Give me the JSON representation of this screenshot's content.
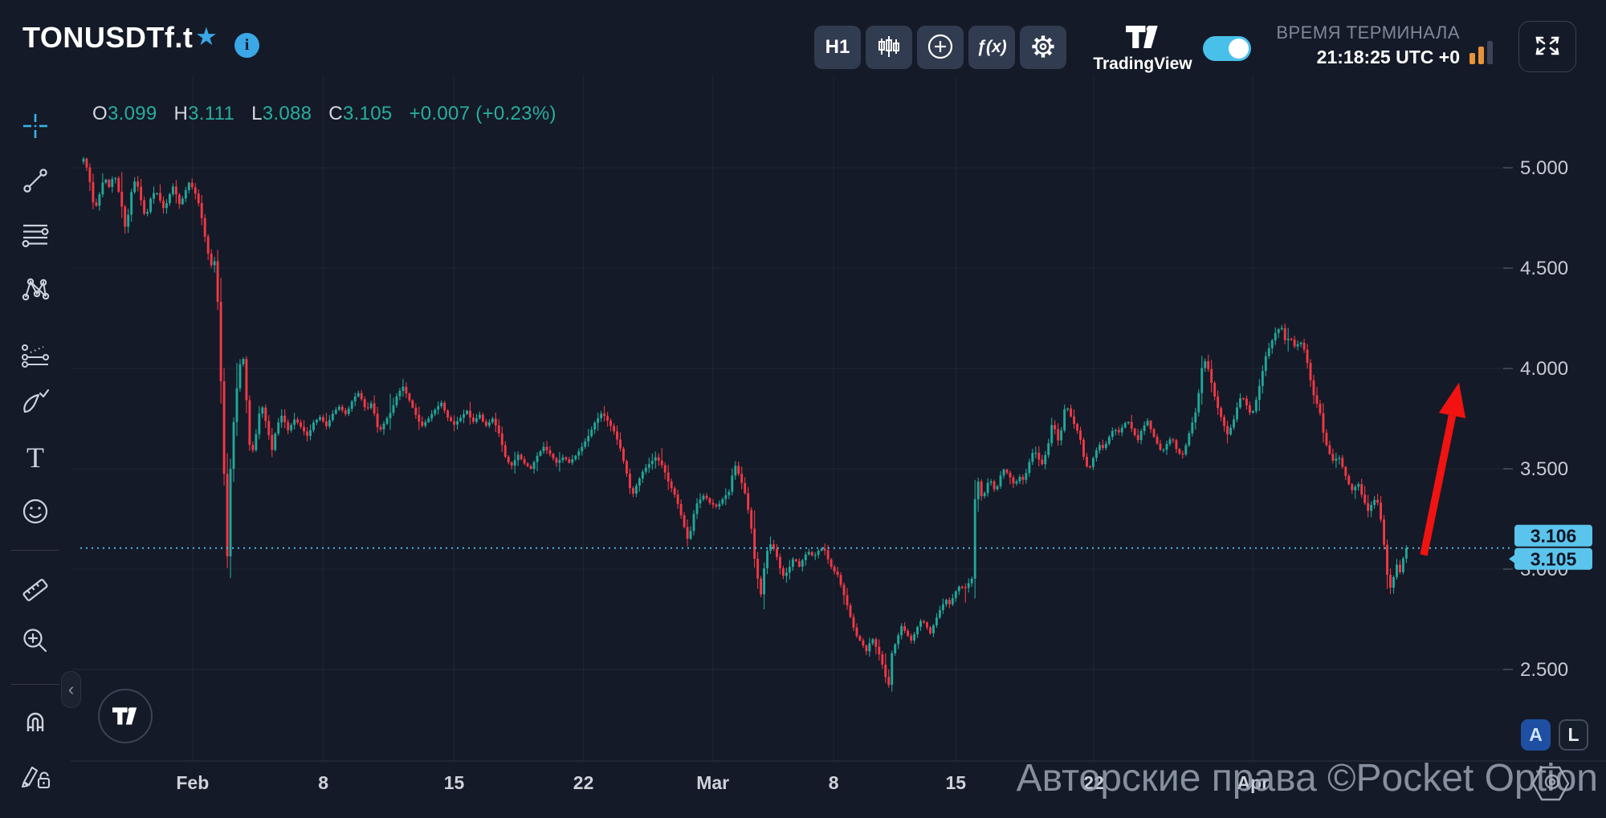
{
  "header": {
    "symbol": "TONUSDTf.t",
    "toolbar": {
      "timeframe": "H1",
      "indicators_label": "ƒ(x)"
    },
    "brand": "TradingView",
    "time_label": "ВРЕМЯ ТЕРМИНАЛА",
    "time_value": "21:18:25 UTC +0"
  },
  "sidebar": {
    "tools": [
      "crosshair",
      "trend-line",
      "fib-lines",
      "xabcd-pattern",
      "forecast",
      "brush",
      "text",
      "emoji",
      "ruler",
      "zoom-in",
      "magnet",
      "edit-lock"
    ]
  },
  "legend": {
    "o_label": "O",
    "o": "3.099",
    "h_label": "H",
    "h": "3.111",
    "l_label": "L",
    "l": "3.088",
    "c_label": "C",
    "c": "3.105",
    "change": "+0.007 (+0.23%)"
  },
  "chart_data": {
    "type": "candlestick",
    "symbol": "TONUSDTf.t",
    "timeframe": "H1",
    "ylim": [
      2.116,
      5.38
    ],
    "grid": true,
    "colors": {
      "up": "#21a79a",
      "down": "#f23846",
      "price_line": "#4fb5e2",
      "label_bg": "#5bc4ec",
      "label_text": "#0e1523",
      "arrow": "#f01311"
    },
    "y_ticks": [
      {
        "label": "5.000",
        "value": 5.0
      },
      {
        "label": "4.500",
        "value": 4.5
      },
      {
        "label": "4.000",
        "value": 4.0
      },
      {
        "label": "3.500",
        "value": 3.5
      },
      {
        "label": "3.000",
        "value": 3.0
      },
      {
        "label": "2.500",
        "value": 2.5
      }
    ],
    "x_ticks": [
      {
        "label": "Feb",
        "f": 0.079,
        "major": true
      },
      {
        "label": "8",
        "f": 0.171,
        "major": false
      },
      {
        "label": "15",
        "f": 0.263,
        "major": false
      },
      {
        "label": "22",
        "f": 0.354,
        "major": false
      },
      {
        "label": "Mar",
        "f": 0.445,
        "major": true
      },
      {
        "label": "8",
        "f": 0.53,
        "major": false
      },
      {
        "label": "15",
        "f": 0.616,
        "major": false
      },
      {
        "label": "22",
        "f": 0.713,
        "major": false
      },
      {
        "label": "Apr",
        "f": 0.825,
        "major": true
      }
    ],
    "current_price": 3.105,
    "price_scale_labels": [
      "3.106",
      "3.105"
    ],
    "candle_count": 415,
    "annotations": [
      {
        "type": "arrow",
        "from_f": 0.9452,
        "from_price": 3.07,
        "to_f": 0.97,
        "to_price": 3.93
      }
    ],
    "anchors": [
      [
        0.0,
        5.03
      ],
      [
        0.003,
        5.05
      ],
      [
        0.007,
        4.92
      ],
      [
        0.01,
        4.78
      ],
      [
        0.014,
        4.88
      ],
      [
        0.017,
        4.96
      ],
      [
        0.02,
        4.9
      ],
      [
        0.024,
        4.97
      ],
      [
        0.027,
        4.88
      ],
      [
        0.03,
        4.78
      ],
      [
        0.032,
        4.68
      ],
      [
        0.036,
        4.88
      ],
      [
        0.039,
        4.95
      ],
      [
        0.042,
        4.86
      ],
      [
        0.046,
        4.74
      ],
      [
        0.049,
        4.84
      ],
      [
        0.053,
        4.89
      ],
      [
        0.056,
        4.84
      ],
      [
        0.059,
        4.79
      ],
      [
        0.063,
        4.87
      ],
      [
        0.066,
        4.92
      ],
      [
        0.069,
        4.81
      ],
      [
        0.073,
        4.86
      ],
      [
        0.076,
        4.93
      ],
      [
        0.08,
        4.89
      ],
      [
        0.083,
        4.83
      ],
      [
        0.086,
        4.73
      ],
      [
        0.089,
        4.6
      ],
      [
        0.092,
        4.51
      ],
      [
        0.094,
        4.56
      ],
      [
        0.096,
        4.44
      ],
      [
        0.098,
        4.12
      ],
      [
        0.1,
        3.72
      ],
      [
        0.102,
        3.3
      ],
      [
        0.103,
        2.97
      ],
      [
        0.105,
        3.42
      ],
      [
        0.107,
        3.66
      ],
      [
        0.109,
        3.82
      ],
      [
        0.111,
        3.96
      ],
      [
        0.114,
        4.09
      ],
      [
        0.116,
        3.96
      ],
      [
        0.118,
        3.7
      ],
      [
        0.12,
        3.56
      ],
      [
        0.123,
        3.63
      ],
      [
        0.125,
        3.76
      ],
      [
        0.128,
        3.81
      ],
      [
        0.132,
        3.69
      ],
      [
        0.135,
        3.59
      ],
      [
        0.138,
        3.71
      ],
      [
        0.142,
        3.77
      ],
      [
        0.146,
        3.69
      ],
      [
        0.151,
        3.75
      ],
      [
        0.155,
        3.71
      ],
      [
        0.16,
        3.66
      ],
      [
        0.164,
        3.73
      ],
      [
        0.169,
        3.76
      ],
      [
        0.173,
        3.71
      ],
      [
        0.178,
        3.78
      ],
      [
        0.182,
        3.81
      ],
      [
        0.187,
        3.77
      ],
      [
        0.192,
        3.85
      ],
      [
        0.196,
        3.88
      ],
      [
        0.201,
        3.79
      ],
      [
        0.205,
        3.83
      ],
      [
        0.21,
        3.68
      ],
      [
        0.214,
        3.73
      ],
      [
        0.219,
        3.79
      ],
      [
        0.223,
        3.87
      ],
      [
        0.227,
        3.91
      ],
      [
        0.231,
        3.85
      ],
      [
        0.236,
        3.77
      ],
      [
        0.24,
        3.71
      ],
      [
        0.245,
        3.75
      ],
      [
        0.249,
        3.79
      ],
      [
        0.254,
        3.83
      ],
      [
        0.258,
        3.76
      ],
      [
        0.263,
        3.72
      ],
      [
        0.267,
        3.75
      ],
      [
        0.272,
        3.79
      ],
      [
        0.276,
        3.73
      ],
      [
        0.281,
        3.77
      ],
      [
        0.285,
        3.71
      ],
      [
        0.29,
        3.75
      ],
      [
        0.294,
        3.69
      ],
      [
        0.299,
        3.56
      ],
      [
        0.303,
        3.51
      ],
      [
        0.308,
        3.57
      ],
      [
        0.312,
        3.53
      ],
      [
        0.317,
        3.5
      ],
      [
        0.321,
        3.56
      ],
      [
        0.326,
        3.61
      ],
      [
        0.331,
        3.57
      ],
      [
        0.335,
        3.53
      ],
      [
        0.34,
        3.56
      ],
      [
        0.344,
        3.53
      ],
      [
        0.349,
        3.57
      ],
      [
        0.353,
        3.61
      ],
      [
        0.358,
        3.67
      ],
      [
        0.362,
        3.73
      ],
      [
        0.367,
        3.78
      ],
      [
        0.371,
        3.74
      ],
      [
        0.376,
        3.68
      ],
      [
        0.38,
        3.6
      ],
      [
        0.385,
        3.46
      ],
      [
        0.388,
        3.36
      ],
      [
        0.392,
        3.43
      ],
      [
        0.396,
        3.49
      ],
      [
        0.401,
        3.53
      ],
      [
        0.405,
        3.56
      ],
      [
        0.41,
        3.51
      ],
      [
        0.414,
        3.43
      ],
      [
        0.419,
        3.36
      ],
      [
        0.423,
        3.26
      ],
      [
        0.428,
        3.13
      ],
      [
        0.431,
        3.26
      ],
      [
        0.434,
        3.33
      ],
      [
        0.439,
        3.37
      ],
      [
        0.443,
        3.33
      ],
      [
        0.448,
        3.31
      ],
      [
        0.453,
        3.36
      ],
      [
        0.457,
        3.39
      ],
      [
        0.46,
        3.53
      ],
      [
        0.464,
        3.46
      ],
      [
        0.468,
        3.37
      ],
      [
        0.472,
        3.21
      ],
      [
        0.475,
        3.01
      ],
      [
        0.479,
        2.87
      ],
      [
        0.482,
        3.06
      ],
      [
        0.485,
        3.13
      ],
      [
        0.489,
        3.09
      ],
      [
        0.492,
        3.01
      ],
      [
        0.495,
        2.96
      ],
      [
        0.499,
        3.01
      ],
      [
        0.502,
        3.06
      ],
      [
        0.506,
        3.01
      ],
      [
        0.509,
        3.06
      ],
      [
        0.512,
        3.09
      ],
      [
        0.516,
        3.06
      ],
      [
        0.519,
        3.09
      ],
      [
        0.523,
        3.11
      ],
      [
        0.526,
        3.05
      ],
      [
        0.529,
        3.0
      ],
      [
        0.533,
        2.97
      ],
      [
        0.536,
        2.9
      ],
      [
        0.54,
        2.81
      ],
      [
        0.543,
        2.73
      ],
      [
        0.546,
        2.67
      ],
      [
        0.55,
        2.63
      ],
      [
        0.553,
        2.59
      ],
      [
        0.557,
        2.66
      ],
      [
        0.56,
        2.61
      ],
      [
        0.563,
        2.56
      ],
      [
        0.567,
        2.45
      ],
      [
        0.569,
        2.42
      ],
      [
        0.571,
        2.58
      ],
      [
        0.575,
        2.66
      ],
      [
        0.578,
        2.72
      ],
      [
        0.581,
        2.68
      ],
      [
        0.585,
        2.64
      ],
      [
        0.588,
        2.7
      ],
      [
        0.592,
        2.75
      ],
      [
        0.595,
        2.72
      ],
      [
        0.598,
        2.68
      ],
      [
        0.602,
        2.75
      ],
      [
        0.605,
        2.8
      ],
      [
        0.609,
        2.85
      ],
      [
        0.612,
        2.82
      ],
      [
        0.615,
        2.88
      ],
      [
        0.619,
        2.92
      ],
      [
        0.622,
        2.9
      ],
      [
        0.625,
        2.93
      ],
      [
        0.628,
        2.96
      ],
      [
        0.63,
        3.48
      ],
      [
        0.632,
        3.43
      ],
      [
        0.635,
        3.33
      ],
      [
        0.637,
        3.41
      ],
      [
        0.64,
        3.45
      ],
      [
        0.644,
        3.38
      ],
      [
        0.647,
        3.46
      ],
      [
        0.65,
        3.5
      ],
      [
        0.654,
        3.46
      ],
      [
        0.657,
        3.42
      ],
      [
        0.661,
        3.46
      ],
      [
        0.664,
        3.44
      ],
      [
        0.667,
        3.52
      ],
      [
        0.671,
        3.6
      ],
      [
        0.674,
        3.55
      ],
      [
        0.677,
        3.52
      ],
      [
        0.681,
        3.62
      ],
      [
        0.684,
        3.74
      ],
      [
        0.688,
        3.64
      ],
      [
        0.691,
        3.71
      ],
      [
        0.693,
        3.83
      ],
      [
        0.697,
        3.76
      ],
      [
        0.7,
        3.71
      ],
      [
        0.703,
        3.67
      ],
      [
        0.707,
        3.52
      ],
      [
        0.71,
        3.5
      ],
      [
        0.714,
        3.58
      ],
      [
        0.717,
        3.62
      ],
      [
        0.72,
        3.6
      ],
      [
        0.724,
        3.66
      ],
      [
        0.727,
        3.7
      ],
      [
        0.731,
        3.68
      ],
      [
        0.734,
        3.72
      ],
      [
        0.737,
        3.74
      ],
      [
        0.741,
        3.68
      ],
      [
        0.744,
        3.64
      ],
      [
        0.747,
        3.7
      ],
      [
        0.751,
        3.74
      ],
      [
        0.754,
        3.68
      ],
      [
        0.758,
        3.62
      ],
      [
        0.761,
        3.58
      ],
      [
        0.764,
        3.62
      ],
      [
        0.768,
        3.66
      ],
      [
        0.771,
        3.6
      ],
      [
        0.775,
        3.56
      ],
      [
        0.778,
        3.62
      ],
      [
        0.781,
        3.7
      ],
      [
        0.785,
        3.79
      ],
      [
        0.788,
        3.93
      ],
      [
        0.79,
        4.06
      ],
      [
        0.794,
        3.99
      ],
      [
        0.797,
        3.89
      ],
      [
        0.8,
        3.81
      ],
      [
        0.804,
        3.73
      ],
      [
        0.807,
        3.67
      ],
      [
        0.811,
        3.73
      ],
      [
        0.814,
        3.81
      ],
      [
        0.817,
        3.87
      ],
      [
        0.821,
        3.81
      ],
      [
        0.824,
        3.76
      ],
      [
        0.828,
        3.86
      ],
      [
        0.831,
        3.96
      ],
      [
        0.834,
        4.06
      ],
      [
        0.838,
        4.13
      ],
      [
        0.841,
        4.18
      ],
      [
        0.845,
        4.21
      ],
      [
        0.848,
        4.13
      ],
      [
        0.851,
        4.16
      ],
      [
        0.855,
        4.1
      ],
      [
        0.858,
        4.14
      ],
      [
        0.862,
        4.08
      ],
      [
        0.865,
        3.96
      ],
      [
        0.868,
        3.86
      ],
      [
        0.872,
        3.79
      ],
      [
        0.875,
        3.66
      ],
      [
        0.878,
        3.59
      ],
      [
        0.882,
        3.53
      ],
      [
        0.885,
        3.57
      ],
      [
        0.889,
        3.49
      ],
      [
        0.892,
        3.43
      ],
      [
        0.895,
        3.39
      ],
      [
        0.899,
        3.43
      ],
      [
        0.902,
        3.36
      ],
      [
        0.906,
        3.29
      ],
      [
        0.909,
        3.33
      ],
      [
        0.912,
        3.36
      ],
      [
        0.916,
        3.21
      ],
      [
        0.919,
        3.0
      ],
      [
        0.921,
        2.89
      ],
      [
        0.924,
        2.96
      ],
      [
        0.926,
        3.03
      ],
      [
        0.928,
        2.97
      ],
      [
        0.931,
        3.06
      ],
      [
        0.933,
        3.105
      ]
    ]
  },
  "watermark": "Авторские права ©Pocket Option",
  "chart_controls": {
    "auto_label": "A",
    "log_label": "L"
  }
}
